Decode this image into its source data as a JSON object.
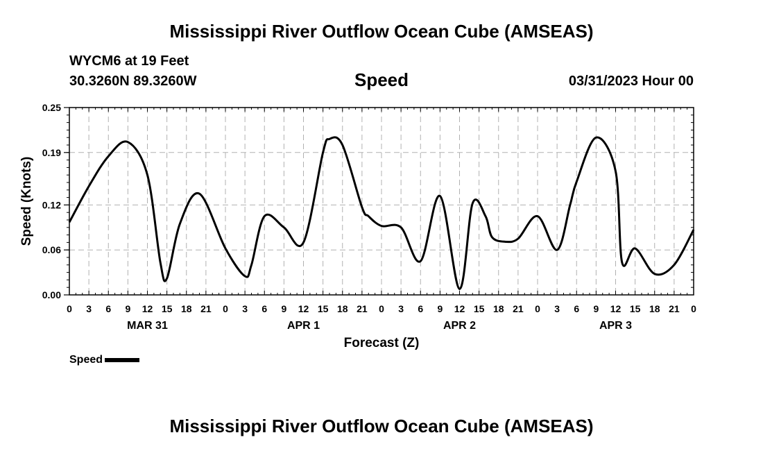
{
  "page": {
    "title_top": "Mississippi River Outflow Ocean Cube (AMSEAS)",
    "title_bottom": "Mississippi River Outflow Ocean Cube (AMSEAS)",
    "station": "WYCM6 at 19 Feet",
    "coords": "30.3260N  89.3260W",
    "chart_title": "Speed",
    "timestamp": "03/31/2023 Hour 00"
  },
  "chart_data": {
    "type": "line",
    "title": "Speed",
    "xlabel": "Forecast (Z)",
    "ylabel": "Speed (Knots)",
    "ylim": [
      0,
      0.25
    ],
    "xlim": [
      0,
      96
    ],
    "y_ticks": [
      0.0,
      0.06,
      0.12,
      0.19,
      0.25
    ],
    "y_tick_labels": [
      "0.00",
      "0.06",
      "0.12",
      "0.19",
      "0.25"
    ],
    "x_ticks": [
      0,
      3,
      6,
      9,
      12,
      15,
      18,
      21,
      24,
      27,
      30,
      33,
      36,
      39,
      42,
      45,
      48,
      51,
      54,
      57,
      60,
      63,
      66,
      69,
      72,
      75,
      78,
      81,
      84,
      87,
      90,
      93,
      96
    ],
    "x_tick_labels": [
      "0",
      "3",
      "6",
      "9",
      "12",
      "15",
      "18",
      "21",
      "0",
      "3",
      "6",
      "9",
      "12",
      "15",
      "18",
      "21",
      "0",
      "3",
      "6",
      "9",
      "12",
      "15",
      "18",
      "21",
      "0",
      "3",
      "6",
      "9",
      "12",
      "15",
      "18",
      "21",
      "0"
    ],
    "day_labels": [
      {
        "label": "MAR 31",
        "x": 12
      },
      {
        "label": "APR 1",
        "x": 36
      },
      {
        "label": "APR 2",
        "x": 60
      },
      {
        "label": "APR 3",
        "x": 84
      }
    ],
    "grid": true,
    "legend": {
      "label": "Speed",
      "position": "bottom-left"
    },
    "series": [
      {
        "name": "Speed",
        "color": "#000000",
        "x": [
          0,
          3,
          6,
          9,
          12,
          14,
          15,
          17,
          20,
          24,
          27,
          28,
          30,
          33,
          36,
          39,
          40,
          42,
          45,
          46,
          48,
          51,
          54,
          57,
          60,
          62,
          64,
          65,
          67,
          69,
          72,
          75,
          77,
          78,
          81,
          84,
          85,
          87,
          90,
          93,
          96
        ],
        "values": [
          0.097,
          0.145,
          0.185,
          0.204,
          0.16,
          0.043,
          0.022,
          0.095,
          0.135,
          0.062,
          0.025,
          0.04,
          0.105,
          0.09,
          0.07,
          0.19,
          0.208,
          0.2,
          0.117,
          0.105,
          0.092,
          0.09,
          0.045,
          0.132,
          0.008,
          0.122,
          0.105,
          0.077,
          0.071,
          0.075,
          0.105,
          0.06,
          0.12,
          0.151,
          0.21,
          0.165,
          0.043,
          0.062,
          0.028,
          0.04,
          0.087
        ]
      }
    ]
  }
}
